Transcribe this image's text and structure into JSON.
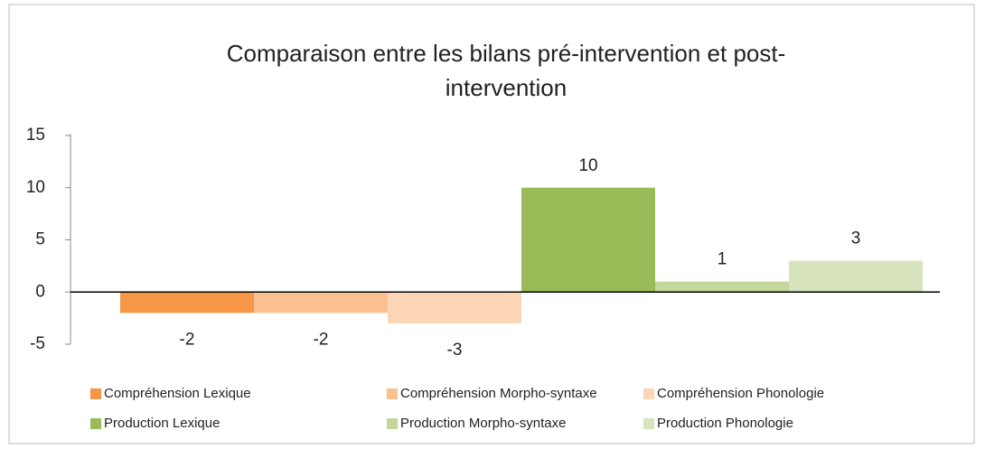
{
  "chart_data": {
    "type": "bar",
    "title": "Comparaison entre les bilans pré-intervention et post-intervention",
    "series": [
      {
        "name": "Compréhension Lexique",
        "color": "#f79646",
        "values": [
          -2
        ]
      },
      {
        "name": "Compréhension Morpho-syntaxe",
        "color": "#fac090",
        "values": [
          -2
        ]
      },
      {
        "name": "Compréhension Phonologie",
        "color": "#fcd5b5",
        "values": [
          -3
        ]
      },
      {
        "name": "Production Lexique",
        "color": "#9bbb59",
        "values": [
          10
        ]
      },
      {
        "name": "Production Morpho-syntaxe",
        "color": "#c3d69b",
        "values": [
          1
        ]
      },
      {
        "name": "Production Phonologie",
        "color": "#d7e4bd",
        "values": [
          3
        ]
      }
    ],
    "ylim": [
      -5,
      15
    ],
    "yticks": [
      -5,
      0,
      5,
      10,
      15
    ],
    "grid": false
  }
}
